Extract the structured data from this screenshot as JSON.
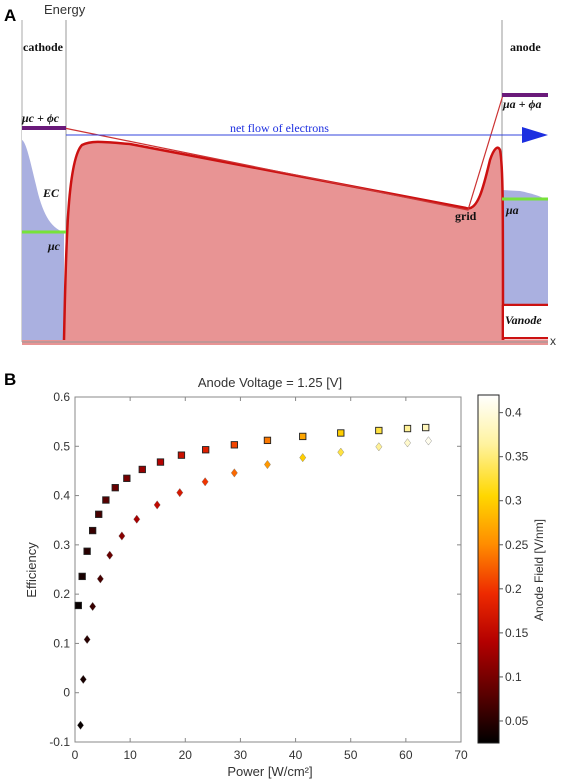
{
  "panel_a": {
    "letter": "A",
    "y_axis_label": "Energy",
    "x_axis_label": "x",
    "cathode_label": "cathode",
    "anode_label": "anode",
    "mu_c_plus_phi_c": "μc + ϕc",
    "net_flow_label": "net flow of electrons",
    "ec_label": "EC",
    "mu_c_label": "μc",
    "grid_label": "grid",
    "mu_a_plus_phi_a": "μa + ϕa",
    "mu_a_label": "μa",
    "v_anode_label": "Vanode",
    "colors": {
      "barrier_fill": "#e89494",
      "barrier_line": "#cc1111",
      "fermi_fill": "#aab0e0",
      "fermi_level": "#77e23a",
      "work_function": "#6a1a7a",
      "flow_arrow": "#1d2fe0"
    }
  },
  "panel_b": {
    "letter": "B",
    "chart_data": {
      "type": "scatter",
      "title": "Anode Voltage = 1.25 [V]",
      "xlabel": "Power [W/cm²]",
      "ylabel": "Efficiency",
      "xlim": [
        0,
        70
      ],
      "ylim": [
        -0.1,
        0.6
      ],
      "xticks": [
        "0",
        "10",
        "20",
        "30",
        "40",
        "50",
        "60",
        "70"
      ],
      "yticks": [
        "-0.1",
        "0",
        "0.1",
        "0.2",
        "0.3",
        "0.4",
        "0.5",
        "0.6"
      ],
      "series": [
        {
          "marker": "square",
          "x": [
            0.6,
            1.3,
            2.2,
            3.2,
            4.3,
            5.6,
            7.3,
            9.4,
            12.2,
            15.5,
            19.3,
            23.7,
            28.9,
            34.9,
            41.3,
            48.2,
            55.1,
            60.3,
            63.6
          ],
          "y": [
            0.177,
            0.236,
            0.287,
            0.329,
            0.362,
            0.391,
            0.416,
            0.435,
            0.453,
            0.468,
            0.482,
            0.493,
            0.503,
            0.512,
            0.52,
            0.527,
            0.532,
            0.536,
            0.538
          ],
          "field": [
            0.03,
            0.04,
            0.05,
            0.06,
            0.07,
            0.08,
            0.09,
            0.1,
            0.12,
            0.14,
            0.16,
            0.18,
            0.21,
            0.24,
            0.27,
            0.3,
            0.33,
            0.36,
            0.38
          ]
        },
        {
          "marker": "diamond",
          "x": [
            1.0,
            1.5,
            2.2,
            3.2,
            4.6,
            6.3,
            8.5,
            11.2,
            14.9,
            19.0,
            23.6,
            28.9,
            34.9,
            41.3,
            48.2,
            55.1,
            60.3,
            64.1
          ],
          "y": [
            -0.066,
            0.027,
            0.108,
            0.175,
            0.231,
            0.279,
            0.318,
            0.352,
            0.381,
            0.406,
            0.428,
            0.446,
            0.463,
            0.477,
            0.488,
            0.499,
            0.507,
            0.511
          ],
          "field": [
            0.03,
            0.04,
            0.05,
            0.06,
            0.07,
            0.09,
            0.11,
            0.13,
            0.15,
            0.17,
            0.2,
            0.23,
            0.26,
            0.3,
            0.33,
            0.36,
            0.39,
            0.41
          ]
        }
      ],
      "colorbar": {
        "label": "Anode Field [V/nm]",
        "range": [
          0.025,
          0.42
        ],
        "ticks": [
          "0.05",
          "0.1",
          "0.15",
          "0.2",
          "0.25",
          "0.3",
          "0.35",
          "0.4"
        ],
        "colormap": [
          "#000000",
          "#5a0000",
          "#b30000",
          "#ee2a00",
          "#ff8c00",
          "#ffd700",
          "#fff3a0",
          "#ffffff"
        ]
      },
      "grid": false,
      "legend": "none"
    }
  }
}
